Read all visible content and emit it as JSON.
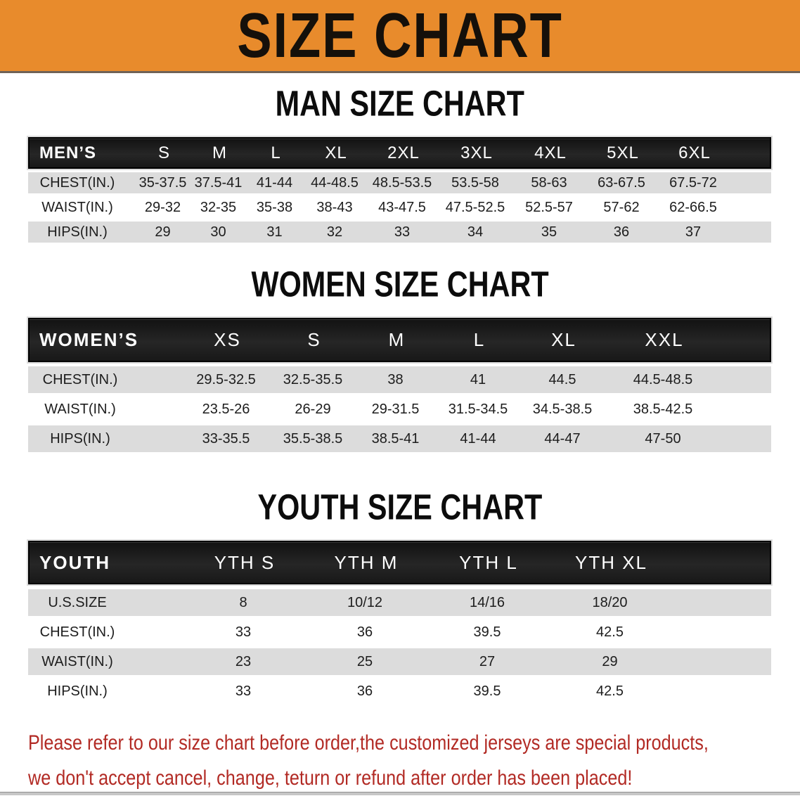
{
  "banner": {
    "title": "SIZE CHART"
  },
  "sections": [
    {
      "heading": "MAN SIZE CHART",
      "table": {
        "label": "MEN’S",
        "sizes": [
          "S",
          "M",
          "L",
          "XL",
          "2XL",
          "3XL",
          "4XL",
          "5XL",
          "6XL"
        ],
        "rows": [
          {
            "label": "CHEST(IN.)",
            "values": [
              "35-37.5",
              "37.5-41",
              "41-44",
              "44-48.5",
              "48.5-53.5",
              "53.5-58",
              "58-63",
              "63-67.5",
              "67.5-72"
            ]
          },
          {
            "label": "WAIST(IN.)",
            "values": [
              "29-32",
              "32-35",
              "35-38",
              "38-43",
              "43-47.5",
              "47.5-52.5",
              "52.5-57",
              "57-62",
              "62-66.5"
            ]
          },
          {
            "label": "HIPS(IN.)",
            "values": [
              "29",
              "30",
              "31",
              "32",
              "33",
              "34",
              "35",
              "36",
              "37"
            ]
          }
        ]
      }
    },
    {
      "heading": "WOMEN SIZE CHART",
      "table": {
        "label": "WOMEN’S",
        "sizes": [
          "XS",
          "S",
          "M",
          "L",
          "XL",
          "XXL"
        ],
        "rows": [
          {
            "label": "CHEST(IN.)",
            "values": [
              "29.5-32.5",
              "32.5-35.5",
              "38",
              "41",
              "44.5",
              "44.5-48.5"
            ]
          },
          {
            "label": "WAIST(IN.)",
            "values": [
              "23.5-26",
              "26-29",
              "29-31.5",
              "31.5-34.5",
              "34.5-38.5",
              "38.5-42.5"
            ]
          },
          {
            "label": "HIPS(IN.)",
            "values": [
              "33-35.5",
              "35.5-38.5",
              "38.5-41",
              "41-44",
              "44-47",
              "47-50"
            ]
          }
        ]
      }
    },
    {
      "heading": "YOUTH SIZE CHART",
      "table": {
        "label": "YOUTH",
        "sizes": [
          "YTH S",
          "YTH M",
          "YTH L",
          "YTH XL"
        ],
        "rows": [
          {
            "label": "U.S.SIZE",
            "values": [
              "8",
              "10/12",
              "14/16",
              "18/20"
            ]
          },
          {
            "label": "CHEST(IN.)",
            "values": [
              "33",
              "36",
              "39.5",
              "42.5"
            ]
          },
          {
            "label": "WAIST(IN.)",
            "values": [
              "23",
              "25",
              "27",
              "29"
            ]
          },
          {
            "label": "HIPS(IN.)",
            "values": [
              "33",
              "36",
              "39.5",
              "42.5"
            ]
          }
        ]
      }
    }
  ],
  "footer": {
    "line1": "Please refer to our size chart before order,the customized jerseys are special products,",
    "line2": "we don't accept cancel, change, teturn or refund after order has been placed!"
  },
  "colors": {
    "banner_bg": "#E88B2C",
    "header_row_bg": "#1A1A1A",
    "stripe_gray": "#DCDCDC",
    "notice_red": "#B22A24"
  }
}
